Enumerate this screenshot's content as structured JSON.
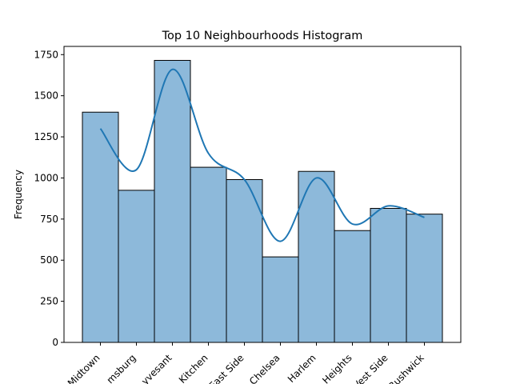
{
  "chart_data": {
    "type": "bar",
    "title": "Top 10 Neighbourhoods Histogram",
    "xlabel": "",
    "ylabel": "Frequency",
    "categories": [
      "Midtown",
      "Williamsburg",
      "Bedford-Stuyvesant",
      "Hell's Kitchen",
      "Upper East Side",
      "Chelsea",
      "Harlem",
      "Washington Heights",
      "Upper West Side",
      "Bushwick"
    ],
    "tick_labels_visible": [
      "Midtown",
      "msburg",
      "yvesant",
      "Kitchen",
      "East Side",
      "Chelsea",
      "Harlem",
      "Heights",
      "Vest Side",
      "Bushwick"
    ],
    "values": [
      1400,
      925,
      1715,
      1065,
      990,
      520,
      1040,
      680,
      815,
      780
    ],
    "kde": [
      1300,
      1050,
      1660,
      1150,
      990,
      615,
      1000,
      720,
      830,
      760
    ],
    "ylim": [
      0,
      1800
    ],
    "yticks": [
      0,
      250,
      500,
      750,
      1000,
      1250,
      1500,
      1750
    ],
    "grid": false,
    "bar_color": "#8db9da",
    "edge_color": "#000000",
    "line_color": "#1f77b4"
  }
}
